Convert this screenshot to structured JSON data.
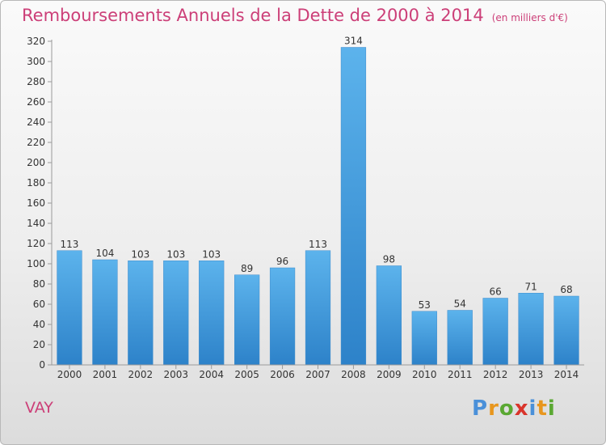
{
  "chart_data": {
    "type": "bar",
    "title": "Remboursements Annuels de la Dette de 2000 à 2014",
    "subtitle": "(en milliers d'€)",
    "categories": [
      "2000",
      "2001",
      "2002",
      "2003",
      "2004",
      "2005",
      "2006",
      "2007",
      "2008",
      "2009",
      "2010",
      "2011",
      "2012",
      "2013",
      "2014"
    ],
    "values": [
      113,
      104,
      103,
      103,
      103,
      89,
      96,
      113,
      314,
      98,
      53,
      54,
      66,
      71,
      68
    ],
    "ylim": [
      0,
      320
    ],
    "yticks": [
      0,
      20,
      40,
      60,
      80,
      100,
      120,
      140,
      160,
      180,
      200,
      220,
      240,
      260,
      280,
      300,
      320
    ],
    "xlabel": "",
    "ylabel": "",
    "grid": false,
    "bar_color": "#4da3e0"
  },
  "location": "VAY",
  "brand": {
    "name": "Proxiti",
    "letters": [
      "P",
      "r",
      "o",
      "x",
      "i",
      "t",
      "i"
    ],
    "colors": [
      "#4a90d9",
      "#e8961e",
      "#5aa832",
      "#d9342b",
      "#4a90d9",
      "#e8961e",
      "#5aa832"
    ]
  }
}
